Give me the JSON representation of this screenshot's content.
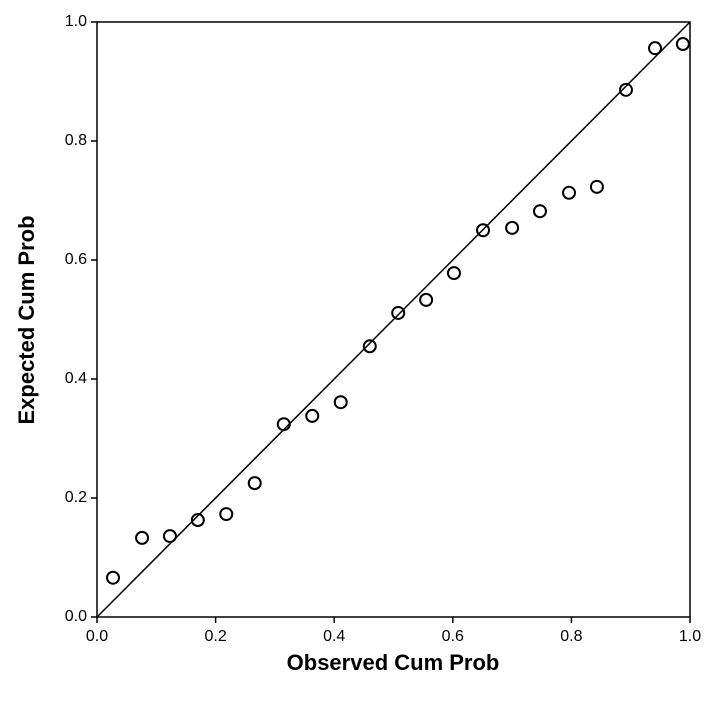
{
  "chart_data": {
    "type": "scatter",
    "x_label": "Observed Cum Prob",
    "y_label": "Expected Cum Prob",
    "series": [
      {
        "color": "#000000",
        "x": [
          0.027,
          0.076,
          0.123,
          0.17,
          0.218,
          0.266,
          0.315,
          0.363,
          0.411,
          0.46,
          0.508,
          0.555,
          0.602,
          0.651,
          0.7,
          0.747,
          0.796,
          0.843,
          0.892,
          0.941,
          0.988
        ],
        "values": [
          0.066,
          0.133,
          0.136,
          0.163,
          0.173,
          0.225,
          0.324,
          0.338,
          0.361,
          0.455,
          0.511,
          0.533,
          0.578,
          0.65,
          0.654,
          0.682,
          0.713,
          0.723,
          0.886,
          0.956,
          0.963
        ]
      }
    ],
    "xlim": [
      0,
      1
    ],
    "ylim": [
      0,
      1
    ],
    "xticks": [
      {
        "value": 0,
        "label": "0.0"
      },
      0.2,
      0.4,
      0.6,
      0.8,
      {
        "value": 1,
        "label": "1.0"
      }
    ],
    "yticks": [
      {
        "value": 0,
        "label": "0.0"
      },
      0.2,
      0.4,
      0.6,
      0.8,
      {
        "value": 1,
        "label": "1.0"
      }
    ]
  }
}
